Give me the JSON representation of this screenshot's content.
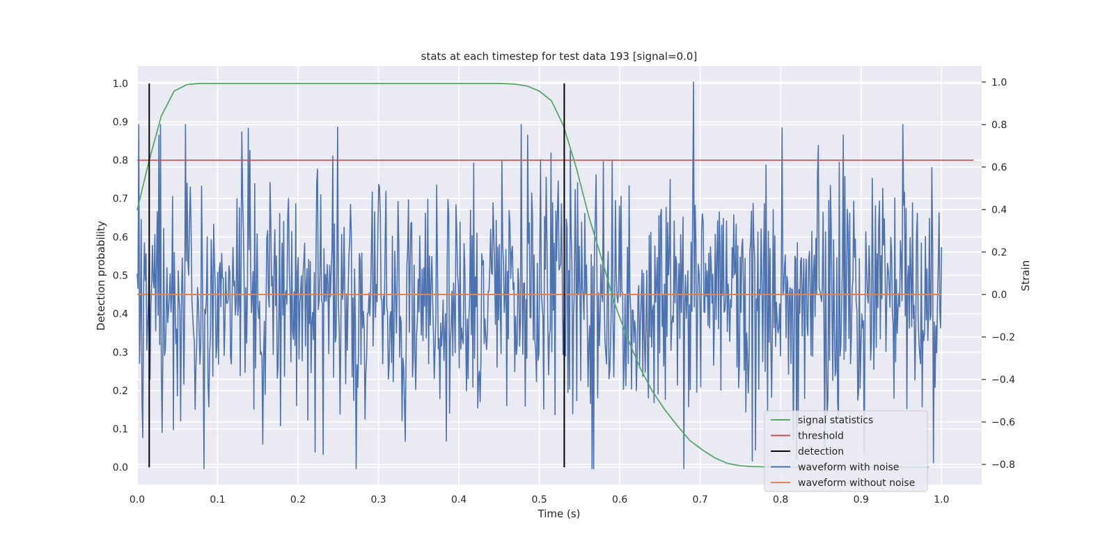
{
  "chart_data": {
    "type": "line",
    "title": "stats at each timestep for test data 193 [signal=0.0]",
    "xlabel": "Time (s)",
    "ylabel_left": "Detection probability",
    "ylabel_right": "Strain",
    "xlim": [
      0.0,
      1.05
    ],
    "ylim_left": [
      -0.045,
      1.045
    ],
    "ylim_right": [
      -0.895,
      1.075
    ],
    "x_ticks": [
      0.0,
      0.1,
      0.2,
      0.3,
      0.4,
      0.5,
      0.6,
      0.7,
      0.8,
      0.9,
      1.0
    ],
    "x_tick_labels": [
      "0.0",
      "0.1",
      "0.2",
      "0.3",
      "0.4",
      "0.5",
      "0.6",
      "0.7",
      "0.8",
      "0.9",
      "1.0"
    ],
    "y_left_ticks": [
      0.0,
      0.1,
      0.2,
      0.3,
      0.4,
      0.5,
      0.6,
      0.7,
      0.8,
      0.9,
      1.0
    ],
    "y_left_tick_labels": [
      "0.0",
      "0.1",
      "0.2",
      "0.3",
      "0.4",
      "0.5",
      "0.6",
      "0.7",
      "0.8",
      "0.9",
      "1.0"
    ],
    "y_right_ticks": [
      -0.8,
      -0.6,
      -0.4,
      -0.2,
      0.0,
      0.2,
      0.4,
      0.6,
      0.8,
      1.0
    ],
    "y_right_tick_labels": [
      "−0.8",
      "−0.6",
      "−0.4",
      "−0.2",
      "0.0",
      "0.2",
      "0.4",
      "0.6",
      "0.8",
      "1.0"
    ],
    "grid": true,
    "legend_position": "lower-right",
    "series": [
      {
        "name": "signal statistics",
        "axis": "left",
        "color": "#55a868",
        "x": [
          0.0,
          0.015,
          0.03,
          0.046,
          0.062,
          0.078,
          0.093,
          0.109,
          0.2,
          0.3,
          0.4,
          0.45,
          0.47,
          0.485,
          0.5,
          0.515,
          0.53,
          0.546,
          0.562,
          0.578,
          0.593,
          0.609,
          0.625,
          0.64,
          0.656,
          0.671,
          0.687,
          0.703,
          0.718,
          0.734,
          0.75,
          0.765,
          0.781,
          0.8,
          0.9,
          0.984
        ],
        "y": [
          0.67,
          0.8,
          0.915,
          0.98,
          0.997,
          1.0,
          1.0,
          1.0,
          1.0,
          1.0,
          1.0,
          1.0,
          0.998,
          0.993,
          0.98,
          0.955,
          0.89,
          0.78,
          0.65,
          0.54,
          0.43,
          0.34,
          0.26,
          0.2,
          0.15,
          0.11,
          0.07,
          0.045,
          0.025,
          0.01,
          0.004,
          0.002,
          0.001,
          0.0,
          0.0,
          0.0
        ]
      },
      {
        "name": "threshold",
        "axis": "left",
        "color": "#c44e52",
        "x": [
          0.0,
          1.04
        ],
        "y": [
          0.8,
          0.8
        ]
      },
      {
        "name": "detection",
        "axis": "left",
        "color": "#000000",
        "lines": [
          {
            "x": 0.015,
            "y": [
              0.0,
              1.0
            ]
          },
          {
            "x": 0.531,
            "y": [
              0.0,
              1.0
            ]
          }
        ]
      },
      {
        "name": "waveform with noise",
        "axis": "right",
        "color": "#4c72b0",
        "samples": 1000,
        "x_range": [
          0.0,
          1.0
        ],
        "y_range": [
          -0.82,
          1.0
        ],
        "y_peaks": [
          {
            "x": 0.692,
            "y": 1.0
          },
          {
            "x": 0.06,
            "y": 0.8
          },
          {
            "x": 0.485,
            "y": 0.75
          },
          {
            "x": 0.083,
            "y": -0.82
          }
        ]
      },
      {
        "name": "waveform without noise",
        "axis": "right",
        "color": "#dd8452",
        "x": [
          0.0,
          1.0
        ],
        "y": [
          0.0,
          0.0
        ]
      }
    ]
  }
}
